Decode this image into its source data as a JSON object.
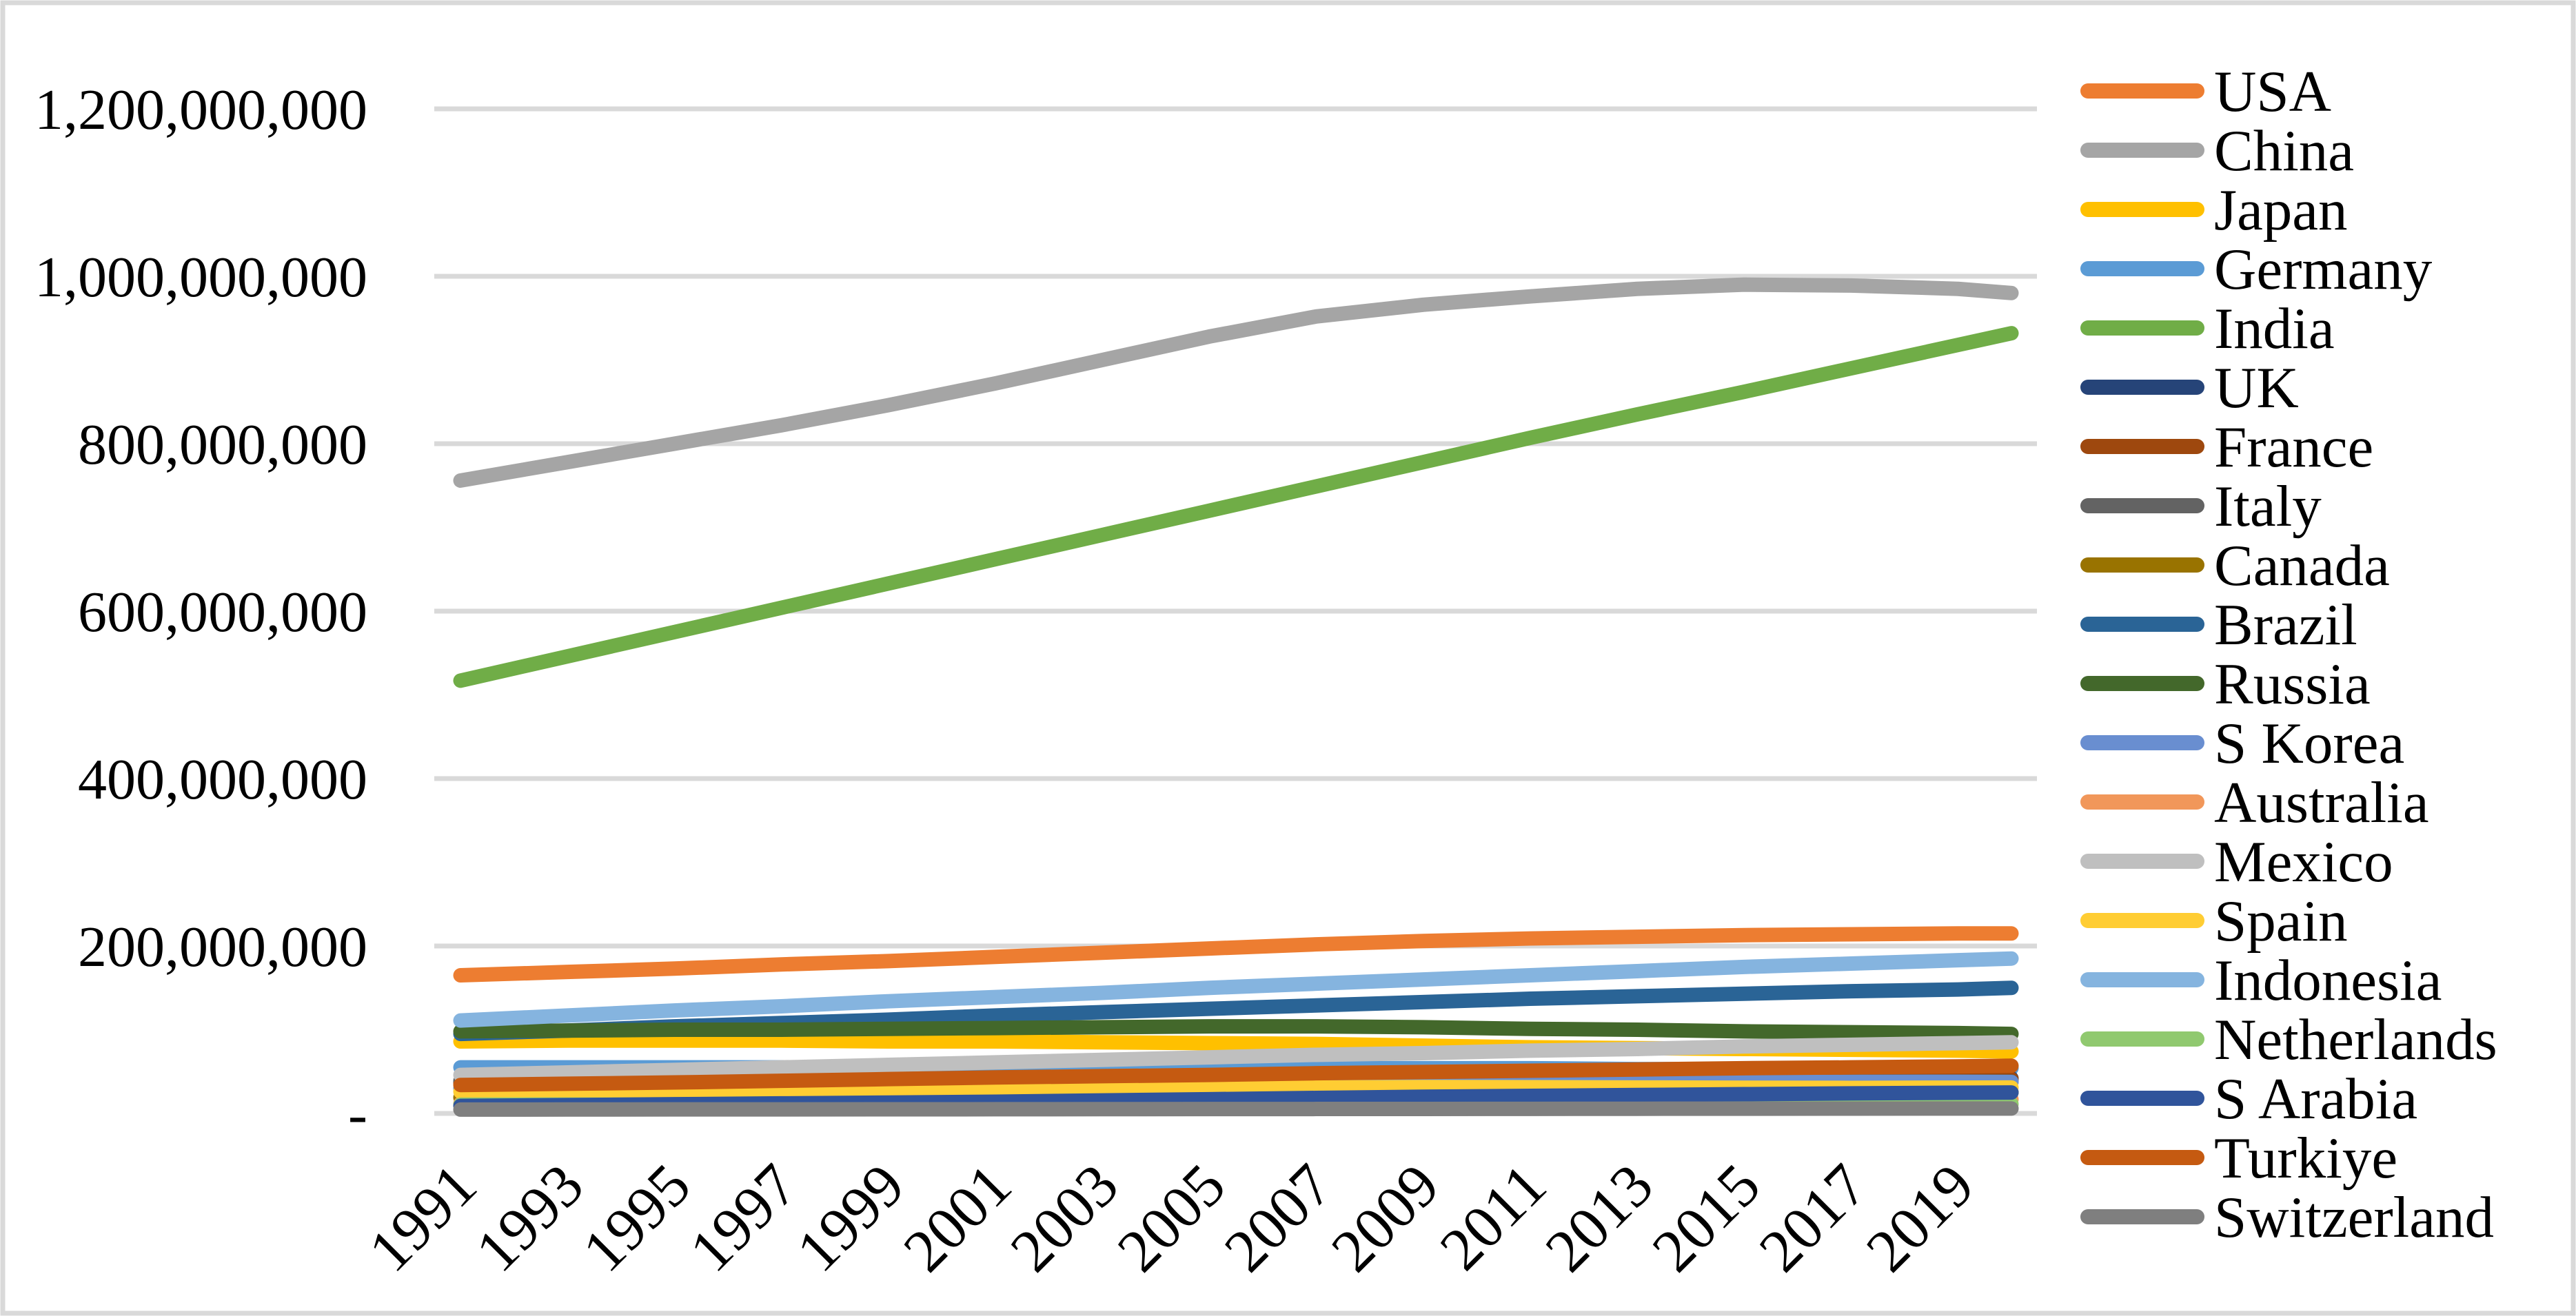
{
  "figure": {
    "background_color": "#FFFFFF",
    "border_color": "#D9D9D9",
    "plot": {
      "gridline_color": "#D9D9D9",
      "line_stroke_width": 21,
      "gridline_stroke_width": 7
    }
  },
  "chart_data": {
    "type": "line",
    "title": "",
    "xlabel": "",
    "ylabel": "",
    "legend_position": "right",
    "grid": true,
    "x": [
      1991,
      1993,
      1995,
      1997,
      1999,
      2001,
      2003,
      2005,
      2007,
      2009,
      2011,
      2013,
      2015,
      2017,
      2019,
      2020
    ],
    "x_tick_labels": [
      "1991",
      "1993",
      "1995",
      "1997",
      "1999",
      "2001",
      "2003",
      "2005",
      "2007",
      "2009",
      "2011",
      "2013",
      "2015",
      "2017",
      "2019"
    ],
    "y_axis": {
      "min": 0,
      "max": 1200000000,
      "tick_step": 200000000,
      "tick_labels_bottom_to_top": [
        "-",
        "200,000,000",
        "400,000,000",
        "600,000,000",
        "800,000,000",
        "1,000,000,000",
        "1,200,000,000"
      ],
      "tick_values_millions_bottom_to_top": [
        0,
        200,
        400,
        600,
        800,
        1000,
        1200
      ]
    },
    "values_unit": "persons (values stored in millions)",
    "series": [
      {
        "name": "USA",
        "color": "#ED7D31",
        "values_millions": [
          165,
          169,
          173,
          178,
          182,
          187,
          192,
          197,
          202,
          206,
          209,
          211,
          213,
          214,
          215,
          215
        ]
      },
      {
        "name": "China",
        "color": "#A5A5A5",
        "values_millions": [
          756,
          778,
          800,
          822,
          846,
          872,
          900,
          928,
          952,
          966,
          976,
          985,
          990,
          989,
          985,
          980
        ]
      },
      {
        "name": "Japan",
        "color": "#FFC000",
        "values_millions": [
          86,
          87,
          87,
          87,
          86,
          86,
          85,
          84,
          83,
          81,
          79,
          78,
          77,
          76,
          75,
          74
        ]
      },
      {
        "name": "Germany",
        "color": "#5B9BD5",
        "values_millions": [
          55,
          55,
          55,
          55,
          55,
          55,
          55,
          55,
          54,
          54,
          54,
          53,
          53,
          54,
          54,
          54
        ]
      },
      {
        "name": "India",
        "color": "#70AD47",
        "values_millions": [
          517,
          546,
          575,
          604,
          633,
          662,
          691,
          720,
          749,
          778,
          807,
          835,
          862,
          890,
          918,
          932
        ]
      },
      {
        "name": "UK",
        "color": "#264478",
        "values_millions": [
          37,
          37,
          38,
          38,
          38,
          39,
          39,
          40,
          40,
          41,
          41,
          41,
          42,
          42,
          42,
          42
        ]
      },
      {
        "name": "France",
        "color": "#9E480E",
        "values_millions": [
          37,
          37,
          38,
          38,
          38,
          39,
          39,
          40,
          40,
          40,
          40,
          40,
          40,
          41,
          41,
          41
        ]
      },
      {
        "name": "Italy",
        "color": "#636363",
        "values_millions": [
          39,
          39,
          39,
          39,
          39,
          38,
          38,
          38,
          38,
          39,
          39,
          39,
          38,
          38,
          38,
          38
        ]
      },
      {
        "name": "Canada",
        "color": "#997300",
        "values_millions": [
          19,
          19.5,
          20,
          20.5,
          21,
          21.5,
          22,
          22.5,
          23,
          23.5,
          24,
          24.2,
          24.5,
          24.8,
          25,
          25.2
        ]
      },
      {
        "name": "Brazil",
        "color": "#2A6496",
        "values_millions": [
          95,
          99,
          104,
          108,
          112,
          117,
          121,
          125,
          129,
          133,
          137,
          140,
          143,
          146,
          148,
          150
        ]
      },
      {
        "name": "Russia",
        "color": "#43682B",
        "values_millions": [
          98,
          99,
          100,
          100,
          101,
          102,
          103,
          104,
          104,
          103,
          101,
          100,
          98,
          97,
          96,
          95
        ]
      },
      {
        "name": "S Korea",
        "color": "#698ED0",
        "values_millions": [
          30,
          31,
          32,
          33,
          33.5,
          34,
          34.5,
          35,
          35.5,
          36,
          36.5,
          37,
          37.3,
          37.6,
          37.8,
          37.5
        ]
      },
      {
        "name": "Australia",
        "color": "#F1975A",
        "values_millions": [
          11.7,
          12,
          12.3,
          12.7,
          13,
          13.4,
          13.8,
          14.2,
          14.7,
          15.1,
          15.5,
          15.8,
          16.1,
          16.4,
          16.7,
          16.8
        ]
      },
      {
        "name": "Mexico",
        "color": "#BFBFBF",
        "values_millions": [
          46,
          49,
          52,
          55,
          58,
          61,
          64,
          67,
          70,
          72,
          75,
          77,
          80,
          82,
          84,
          85
        ]
      },
      {
        "name": "Spain",
        "color": "#FFCD33",
        "values_millions": [
          26,
          26.5,
          27,
          27.5,
          28,
          28.5,
          29.5,
          30.5,
          31,
          31.5,
          31.3,
          31,
          30.7,
          30.5,
          30.8,
          31
        ]
      },
      {
        "name": "Indonesia",
        "color": "#85B4DF",
        "values_millions": [
          111,
          117,
          123,
          128,
          134,
          139,
          144,
          150,
          155,
          160,
          165,
          170,
          175,
          179,
          183,
          185
        ]
      },
      {
        "name": "Netherlands",
        "color": "#90C96F",
        "values_millions": [
          10.4,
          10.5,
          10.6,
          10.7,
          10.8,
          10.9,
          11,
          11,
          11.1,
          11.1,
          11.1,
          11.1,
          11.1,
          11.2,
          11.3,
          11.3
        ]
      },
      {
        "name": "S Arabia",
        "color": "#30549B",
        "values_millions": [
          9,
          10,
          11,
          12,
          13,
          14,
          15.5,
          17,
          18.5,
          20,
          21,
          22,
          23,
          24,
          24.7,
          25
        ]
      },
      {
        "name": "Turkiye",
        "color": "#C55A11",
        "values_millions": [
          34,
          35.5,
          37,
          39,
          41,
          43,
          44.5,
          46,
          48,
          49.5,
          51,
          52.5,
          54,
          55,
          56.2,
          57
        ]
      },
      {
        "name": "Switzerland",
        "color": "#7F7F7F",
        "values_millions": [
          4.6,
          4.7,
          4.8,
          4.8,
          4.9,
          5,
          5.1,
          5.2,
          5.3,
          5.4,
          5.5,
          5.6,
          5.7,
          5.8,
          5.9,
          5.9
        ]
      }
    ]
  }
}
